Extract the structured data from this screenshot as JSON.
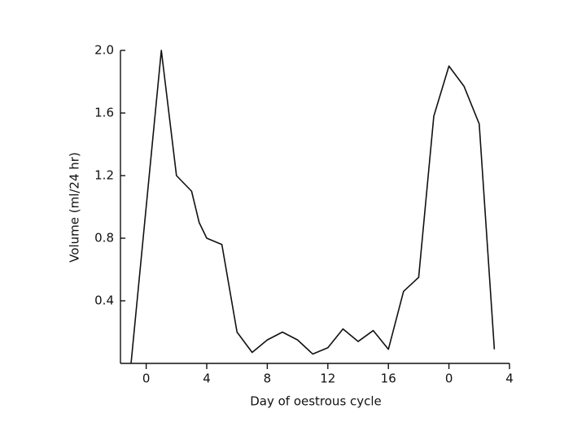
{
  "chart_data": {
    "type": "line",
    "x_label": "Day of oestrous cycle",
    "y_label": "Volume (ml/24 hr)",
    "x": [
      -1,
      1,
      2,
      3,
      3.5,
      4,
      5,
      6,
      7,
      8,
      9,
      10,
      11,
      12,
      13,
      14,
      15,
      16,
      17,
      18,
      19,
      20,
      21,
      22,
      23
    ],
    "series": [
      {
        "color": "#111111",
        "values": [
          0,
          2.0,
          1.2,
          1.1,
          0.9,
          0.8,
          0.76,
          0.2,
          0.07,
          0.15,
          0.2,
          0.15,
          0.06,
          0.1,
          0.22,
          0.14,
          0.21,
          0.09,
          0.46,
          0.55,
          1.58,
          1.9,
          1.77,
          1.53,
          0.09
        ]
      }
    ],
    "xlim": [
      -1.7,
      24
    ],
    "ylim": [
      0,
      2
    ],
    "xticks": [
      0,
      4,
      8,
      12,
      16,
      {
        "value": 20,
        "label": "0"
      },
      {
        "value": 24,
        "label": "4"
      }
    ],
    "yticks": [
      0.4,
      0.8,
      1.2,
      1.6,
      {
        "value": 2,
        "label": "2.0"
      }
    ]
  }
}
